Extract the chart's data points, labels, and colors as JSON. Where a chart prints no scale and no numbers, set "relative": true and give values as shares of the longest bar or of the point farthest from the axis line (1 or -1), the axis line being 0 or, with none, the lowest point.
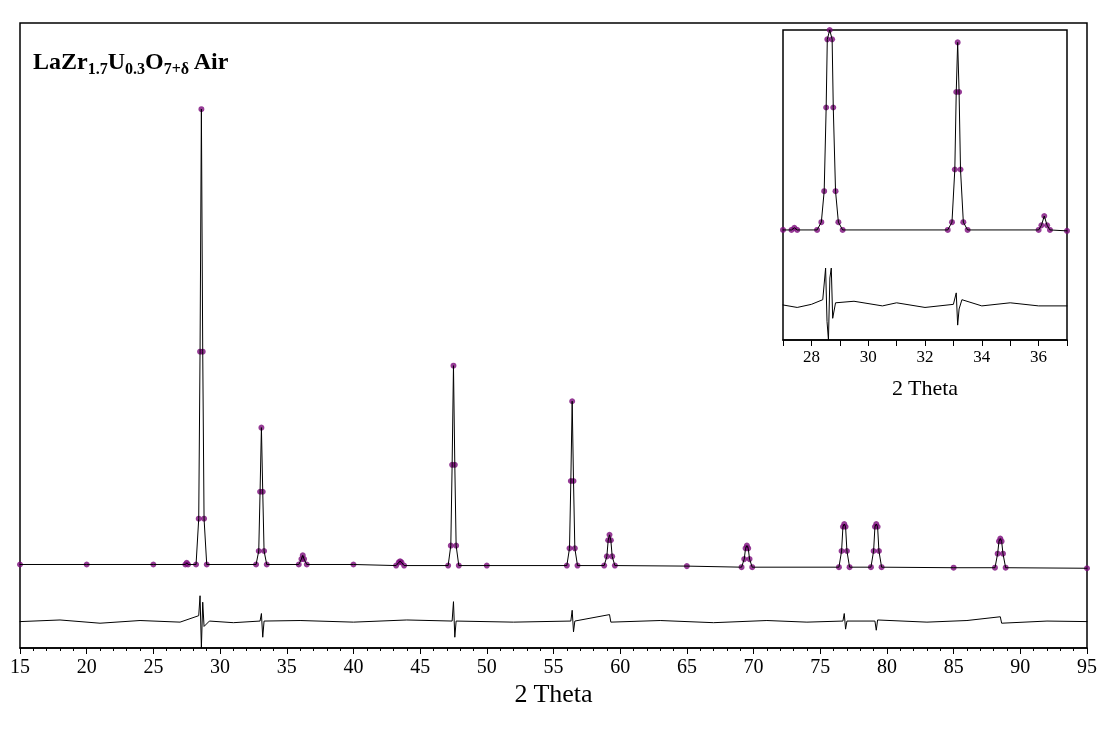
{
  "chart_data": [
    {
      "type": "line",
      "title": "LaZr$_{1.7}$U$_{0.3}$O$_{7+δ}$ Air",
      "xlabel": "2 Theta",
      "relative": true,
      "xlim": [
        15,
        95
      ],
      "xticks": [
        15,
        20,
        25,
        30,
        35,
        40,
        45,
        50,
        55,
        60,
        65,
        70,
        75,
        80,
        85,
        90,
        95
      ],
      "x": [
        15,
        20,
        25,
        27.4,
        27.5,
        27.6,
        28.2,
        28.4,
        28.5,
        28.6,
        28.7,
        28.8,
        29.0,
        32.7,
        32.9,
        33.0,
        33.1,
        33.2,
        33.3,
        33.5,
        35.9,
        36.1,
        36.2,
        36.3,
        36.5,
        40,
        43.2,
        43.4,
        43.5,
        43.6,
        43.8,
        47.1,
        47.3,
        47.4,
        47.5,
        47.6,
        47.7,
        47.9,
        50,
        56.0,
        56.2,
        56.3,
        56.4,
        56.5,
        56.6,
        56.8,
        58.8,
        59.0,
        59.1,
        59.2,
        59.3,
        59.4,
        59.6,
        65,
        69.1,
        69.3,
        69.4,
        69.5,
        69.6,
        69.7,
        69.9,
        76.4,
        76.6,
        76.7,
        76.8,
        76.9,
        77.0,
        77.2,
        78.8,
        79.0,
        79.1,
        79.2,
        79.3,
        79.4,
        79.6,
        85,
        88.1,
        88.3,
        88.4,
        88.5,
        88.6,
        88.7,
        88.9,
        95
      ],
      "series": [
        {
          "type": "scatter",
          "marker": "circle",
          "color": "#7b0a7b",
          "values": [
            0.155,
            0.155,
            0.155,
            0.155,
            0.158,
            0.155,
            0.155,
            0.24,
            0.55,
            1.0,
            0.55,
            0.24,
            0.155,
            0.155,
            0.18,
            0.29,
            0.409,
            0.29,
            0.18,
            0.155,
            0.155,
            0.165,
            0.172,
            0.165,
            0.155,
            0.155,
            0.153,
            0.159,
            0.161,
            0.159,
            0.153,
            0.153,
            0.19,
            0.34,
            0.524,
            0.34,
            0.19,
            0.153,
            0.153,
            0.153,
            0.185,
            0.31,
            0.458,
            0.31,
            0.185,
            0.153,
            0.153,
            0.17,
            0.2,
            0.21,
            0.2,
            0.17,
            0.153,
            0.152,
            0.15,
            0.165,
            0.185,
            0.19,
            0.185,
            0.165,
            0.15,
            0.15,
            0.18,
            0.225,
            0.23,
            0.225,
            0.18,
            0.15,
            0.15,
            0.18,
            0.225,
            0.23,
            0.225,
            0.18,
            0.15,
            0.149,
            0.149,
            0.175,
            0.198,
            0.203,
            0.198,
            0.175,
            0.149,
            0.148
          ]
        },
        {
          "marker": "none",
          "color": "#000000",
          "values": [
            0.155,
            0.155,
            0.155,
            0.155,
            0.158,
            0.155,
            0.155,
            0.24,
            0.55,
            1.0,
            0.55,
            0.24,
            0.155,
            0.155,
            0.18,
            0.29,
            0.409,
            0.29,
            0.18,
            0.155,
            0.155,
            0.165,
            0.172,
            0.165,
            0.155,
            0.155,
            0.153,
            0.159,
            0.161,
            0.159,
            0.153,
            0.153,
            0.19,
            0.34,
            0.524,
            0.34,
            0.19,
            0.153,
            0.153,
            0.153,
            0.185,
            0.31,
            0.458,
            0.31,
            0.185,
            0.153,
            0.153,
            0.17,
            0.2,
            0.21,
            0.2,
            0.17,
            0.153,
            0.152,
            0.15,
            0.165,
            0.185,
            0.19,
            0.185,
            0.165,
            0.15,
            0.15,
            0.18,
            0.225,
            0.23,
            0.225,
            0.18,
            0.15,
            0.15,
            0.18,
            0.225,
            0.23,
            0.225,
            0.18,
            0.15,
            0.149,
            0.149,
            0.175,
            0.198,
            0.203,
            0.198,
            0.175,
            0.149,
            0.148
          ]
        },
        {
          "marker": "none",
          "color": "#000000",
          "x": [
            15,
            18,
            21,
            24,
            27,
            28.4,
            28.5,
            28.6,
            28.7,
            28.8,
            29.2,
            31,
            33.0,
            33.1,
            33.2,
            33.3,
            36,
            40,
            44,
            47.4,
            47.5,
            47.6,
            47.7,
            52,
            56.3,
            56.4,
            56.5,
            56.6,
            59.2,
            59.3,
            63,
            67,
            71,
            74,
            76.7,
            76.8,
            76.9,
            77.0,
            79.1,
            79.2,
            79.3,
            83,
            86,
            88.5,
            88.6,
            92,
            95
          ],
          "values": [
            0.049,
            0.052,
            0.046,
            0.051,
            0.048,
            0.06,
            0.097,
            0,
            0.085,
            0.04,
            0.05,
            0.047,
            0.05,
            0.064,
            0.02,
            0.05,
            0.051,
            0.048,
            0.052,
            0.05,
            0.086,
            0.02,
            0.05,
            0.048,
            0.05,
            0.07,
            0.03,
            0.05,
            0.062,
            0.048,
            0.051,
            0.047,
            0.051,
            0.048,
            0.05,
            0.064,
            0.035,
            0.05,
            0.05,
            0.033,
            0.052,
            0.048,
            0.051,
            0.058,
            0.046,
            0.05,
            0.049
          ]
        }
      ]
    },
    {
      "type": "line",
      "xlabel": "2 Theta",
      "relative": true,
      "xlim": [
        27,
        37
      ],
      "xticks": [
        {
          "value": 27,
          "label": null
        },
        28,
        {
          "value": 29,
          "label": null
        },
        30,
        {
          "value": 31,
          "label": null
        },
        32,
        {
          "value": 33,
          "label": null
        },
        34,
        {
          "value": 35,
          "label": null
        },
        36,
        {
          "value": 37,
          "label": null
        }
      ],
      "x": [
        27,
        27.3,
        27.4,
        27.5,
        28.2,
        28.35,
        28.45,
        28.52,
        28.56,
        28.645,
        28.73,
        28.77,
        28.85,
        28.95,
        29.1,
        32.8,
        32.95,
        33.05,
        33.1,
        33.15,
        33.2,
        33.25,
        33.35,
        33.5,
        36.0,
        36.1,
        36.2,
        36.3,
        36.4,
        37
      ],
      "series": [
        {
          "type": "scatter",
          "marker": "circle",
          "color": "#7b0a7b",
          "values": [
            0.355,
            0.355,
            0.362,
            0.355,
            0.355,
            0.38,
            0.48,
            0.75,
            0.97,
            1.0,
            0.97,
            0.75,
            0.48,
            0.38,
            0.355,
            0.355,
            0.38,
            0.55,
            0.8,
            0.96,
            0.8,
            0.55,
            0.38,
            0.355,
            0.355,
            0.37,
            0.4,
            0.37,
            0.355,
            0.352
          ]
        },
        {
          "marker": "none",
          "color": "#000000",
          "values": [
            0.355,
            0.355,
            0.362,
            0.355,
            0.355,
            0.38,
            0.48,
            0.75,
            0.97,
            1.0,
            0.97,
            0.75,
            0.48,
            0.38,
            0.355,
            0.355,
            0.38,
            0.55,
            0.8,
            0.96,
            0.8,
            0.55,
            0.38,
            0.355,
            0.355,
            0.37,
            0.4,
            0.37,
            0.355,
            0.352
          ]
        },
        {
          "marker": "none",
          "color": "#000000",
          "x": [
            27,
            27.5,
            28,
            28.4,
            28.5,
            28.55,
            28.6,
            28.65,
            28.7,
            28.75,
            28.85,
            29.5,
            30.5,
            31,
            32,
            33,
            33.1,
            33.15,
            33.2,
            33.3,
            34,
            35,
            36,
            37
          ],
          "values": [
            0.113,
            0.105,
            0.115,
            0.13,
            0.232,
            0.06,
            0,
            0.2,
            0.232,
            0.07,
            0.12,
            0.125,
            0.11,
            0.12,
            0.105,
            0.115,
            0.152,
            0.048,
            0.1,
            0.13,
            0.11,
            0.12,
            0.11,
            0.11
          ]
        }
      ]
    }
  ]
}
